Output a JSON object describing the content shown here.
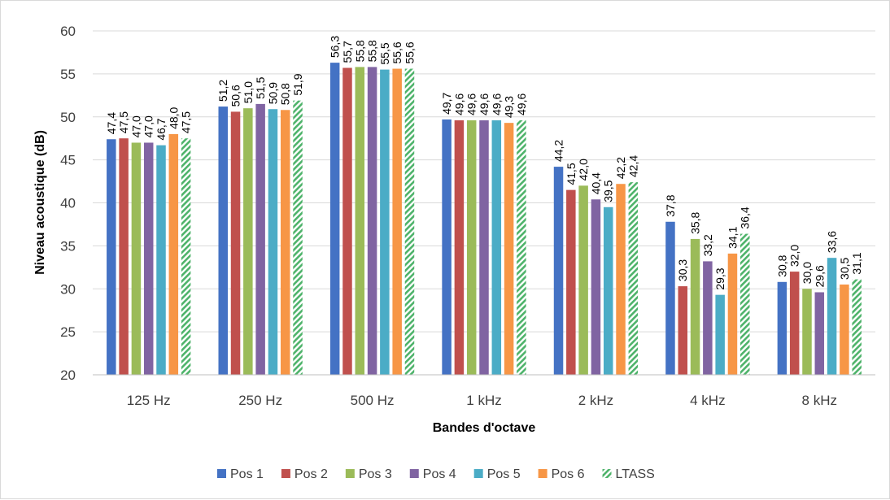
{
  "chart_data": {
    "type": "bar",
    "categories": [
      "125 Hz",
      "250 Hz",
      "500 Hz",
      "1 kHz",
      "2 kHz",
      "4 kHz",
      "8 kHz"
    ],
    "series": [
      {
        "name": "Pos 1",
        "color": "#4472c4",
        "values": [
          47.4,
          51.2,
          56.3,
          49.7,
          44.2,
          37.8,
          30.8
        ],
        "labels": [
          "47,4",
          "51,2",
          "56,3",
          "49,7",
          "44,2",
          "37,8",
          "30,8"
        ]
      },
      {
        "name": "Pos 2",
        "color": "#c0504d",
        "values": [
          47.5,
          50.6,
          55.7,
          49.6,
          41.5,
          30.3,
          32.0
        ],
        "labels": [
          "47,5",
          "50,6",
          "55,7",
          "49,6",
          "41,5",
          "30,3",
          "32,0"
        ]
      },
      {
        "name": "Pos 3",
        "color": "#9bbb59",
        "values": [
          47.0,
          51.0,
          55.8,
          49.6,
          42.0,
          35.8,
          30.0
        ],
        "labels": [
          "47,0",
          "51,0",
          "55,8",
          "49,6",
          "42,0",
          "35,8",
          "30,0"
        ]
      },
      {
        "name": "Pos 4",
        "color": "#8064a2",
        "values": [
          47.0,
          51.5,
          55.8,
          49.6,
          40.4,
          33.2,
          29.6
        ],
        "labels": [
          "47,0",
          "51,5",
          "55,8",
          "49,6",
          "40,4",
          "33,2",
          "29,6"
        ]
      },
      {
        "name": "Pos 5",
        "color": "#4bacc6",
        "values": [
          46.7,
          50.9,
          55.5,
          49.6,
          39.5,
          29.3,
          33.6
        ],
        "labels": [
          "46,7",
          "50,9",
          "55,5",
          "49,6",
          "39,5",
          "29,3",
          "33,6"
        ]
      },
      {
        "name": "Pos 6",
        "color": "#f79646",
        "values": [
          48.0,
          50.8,
          55.6,
          49.3,
          42.2,
          34.1,
          30.5
        ],
        "labels": [
          "48,0",
          "50,8",
          "55,6",
          "49,3",
          "42,2",
          "34,1",
          "30,5"
        ]
      },
      {
        "name": "LTASS",
        "color": "#4eb36a",
        "pattern": "hatched",
        "values": [
          47.5,
          51.9,
          55.6,
          49.6,
          42.4,
          36.4,
          31.1
        ],
        "labels": [
          "47,5",
          "51,9",
          "55,6",
          "49,6",
          "42,4",
          "36,4",
          "31,1"
        ]
      }
    ],
    "xlabel": "Bandes d'octave",
    "ylabel": "Niveau acoustique (dB)",
    "ylim": [
      20,
      60
    ],
    "yticks": [
      20,
      25,
      30,
      35,
      40,
      45,
      50,
      55,
      60
    ],
    "grid": true,
    "legend": "bottom"
  }
}
